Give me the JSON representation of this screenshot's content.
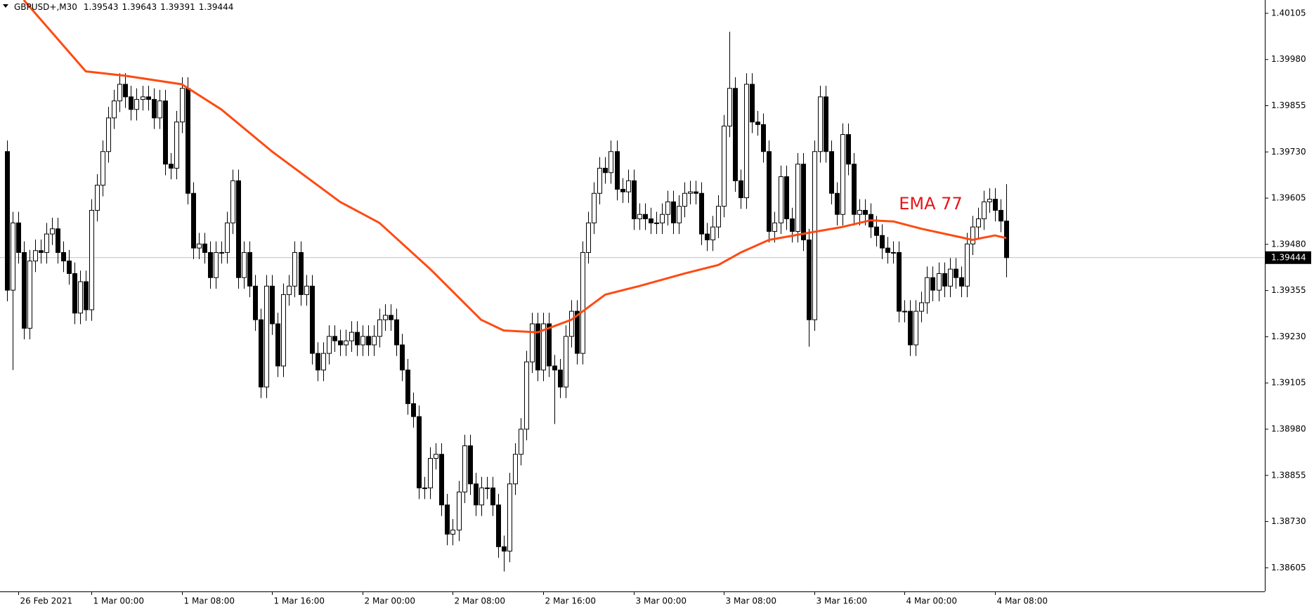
{
  "chart_data": {
    "type": "candlestick",
    "symbol": "GBPUSD+,M30",
    "open": [
      1.39731,
      1.39356,
      1.39538,
      1.39458,
      1.39253,
      1.39435,
      1.39463,
      1.39458,
      1.39508,
      1.39522,
      1.39458,
      1.39435,
      1.39401,
      1.39294,
      1.39379,
      1.39303,
      1.39572,
      1.3964,
      1.39731,
      1.39822,
      1.39868,
      1.39913,
      1.39879,
      1.39845,
      1.39872,
      1.39879,
      1.39872,
      1.39822,
      1.39868,
      1.39697,
      1.39686,
      1.39811,
      1.39902,
      1.39618,
      1.3947,
      1.39481,
      1.39458,
      1.3939,
      1.39458,
      1.39458,
      1.39538,
      1.39652,
      1.3939,
      1.39458,
      1.39367,
      1.39276,
      1.39094,
      1.39367,
      1.39265,
      1.39151,
      1.39344,
      1.39367,
      1.39458,
      1.39344,
      1.39367,
      1.39185,
      1.3914,
      1.39185,
      1.39231,
      1.39219,
      1.39208,
      1.39219,
      1.39242,
      1.39208,
      1.39231,
      1.39208,
      1.39231,
      1.39276,
      1.39288,
      1.39276,
      1.39208,
      1.3914,
      1.39049,
      1.39014,
      1.38821,
      1.38821,
      1.38901,
      1.38912,
      1.38775,
      1.38696,
      1.38707,
      1.3881,
      1.38935,
      1.38832,
      1.38775,
      1.38821,
      1.38821,
      1.38775,
      1.38662,
      1.3865,
      1.38832,
      1.38912,
      1.3898,
      1.39162,
      1.39265,
      1.3914,
      1.39265,
      1.39151,
      1.3914,
      1.39094,
      1.39231,
      1.39299,
      1.39185,
      1.39458,
      1.39538,
      1.39618,
      1.39686,
      1.39674,
      1.39731,
      1.39629,
      1.39622,
      1.39652,
      1.39549,
      1.39561,
      1.39549,
      1.39538,
      1.39538,
      1.39561,
      1.39595,
      1.39538,
      1.39583,
      1.39618,
      1.39622,
      1.39618,
      1.39508,
      1.39492,
      1.39527,
      1.39583,
      1.398,
      1.39902,
      1.39652,
      1.39606,
      1.39913,
      1.39811,
      1.39804,
      1.39731,
      1.39515,
      1.39538,
      1.39663,
      1.39549,
      1.39515,
      1.39697,
      1.39492,
      1.39276,
      1.39731,
      1.39879,
      1.39731,
      1.39618,
      1.39561,
      1.39777,
      1.39697,
      1.39561,
      1.39572,
      1.39561,
      1.39527,
      1.39504,
      1.3947,
      1.39458,
      1.39458,
      1.39299,
      1.39299,
      1.39208,
      1.39299,
      1.39322,
      1.3939,
      1.39356,
      1.39401,
      1.39367,
      1.39413,
      1.3939,
      1.39367,
      1.39481,
      1.39527,
      1.39549,
      1.39595,
      1.39602,
      1.39572,
      1.39543
    ],
    "high": [
      1.39761,
      1.39568,
      1.39568,
      1.39488,
      1.39465,
      1.39493,
      1.39493,
      1.39538,
      1.39552,
      1.39552,
      1.39488,
      1.39465,
      1.39431,
      1.39409,
      1.39409,
      1.39602,
      1.3967,
      1.39761,
      1.39852,
      1.39898,
      1.39943,
      1.39943,
      1.39909,
      1.39902,
      1.39909,
      1.39909,
      1.39902,
      1.39898,
      1.39898,
      1.39727,
      1.39841,
      1.39932,
      1.39932,
      1.39648,
      1.39511,
      1.39511,
      1.39488,
      1.39488,
      1.39488,
      1.39568,
      1.39682,
      1.39682,
      1.39488,
      1.39488,
      1.39397,
      1.39306,
      1.39397,
      1.39397,
      1.39295,
      1.39374,
      1.39397,
      1.39488,
      1.39488,
      1.39397,
      1.39397,
      1.39215,
      1.39215,
      1.39261,
      1.39261,
      1.39249,
      1.39249,
      1.39272,
      1.39272,
      1.39261,
      1.39261,
      1.39261,
      1.39306,
      1.39318,
      1.39318,
      1.39306,
      1.39238,
      1.3917,
      1.39079,
      1.39044,
      1.38851,
      1.38931,
      1.38942,
      1.38942,
      1.38805,
      1.38737,
      1.3884,
      1.38965,
      1.38965,
      1.38862,
      1.38851,
      1.38851,
      1.38851,
      1.38805,
      1.38692,
      1.38862,
      1.38942,
      1.3901,
      1.39192,
      1.39295,
      1.39295,
      1.39295,
      1.39295,
      1.39181,
      1.3917,
      1.39261,
      1.39329,
      1.39329,
      1.39488,
      1.39568,
      1.39648,
      1.39716,
      1.39716,
      1.39761,
      1.39761,
      1.39659,
      1.39682,
      1.39682,
      1.39591,
      1.39591,
      1.39579,
      1.39568,
      1.39591,
      1.39625,
      1.39625,
      1.39613,
      1.39648,
      1.39652,
      1.39652,
      1.39648,
      1.39538,
      1.39557,
      1.39613,
      1.3983,
      1.40055,
      1.39932,
      1.39682,
      1.39943,
      1.39943,
      1.39841,
      1.39834,
      1.39761,
      1.39568,
      1.39693,
      1.39693,
      1.39579,
      1.39727,
      1.39727,
      1.39522,
      1.39761,
      1.39909,
      1.39909,
      1.39761,
      1.39648,
      1.39807,
      1.39807,
      1.39727,
      1.39602,
      1.39602,
      1.39591,
      1.39557,
      1.39534,
      1.395,
      1.39488,
      1.39488,
      1.39329,
      1.39329,
      1.39329,
      1.39352,
      1.3942,
      1.3942,
      1.39431,
      1.39431,
      1.39443,
      1.39443,
      1.3942,
      1.39511,
      1.39557,
      1.39579,
      1.39625,
      1.39632,
      1.39632,
      1.39602,
      1.39643
    ],
    "low": [
      1.39326,
      1.3914,
      1.39428,
      1.39223,
      1.39223,
      1.39405,
      1.39428,
      1.39428,
      1.39478,
      1.39428,
      1.39405,
      1.39371,
      1.39264,
      1.39264,
      1.39273,
      1.39273,
      1.39542,
      1.3961,
      1.39701,
      1.39792,
      1.39838,
      1.39849,
      1.39815,
      1.39815,
      1.39842,
      1.39842,
      1.39792,
      1.39792,
      1.39667,
      1.39656,
      1.39656,
      1.39781,
      1.39588,
      1.3944,
      1.3944,
      1.39428,
      1.3936,
      1.3936,
      1.39428,
      1.39428,
      1.39508,
      1.3936,
      1.3936,
      1.39337,
      1.39246,
      1.39064,
      1.39064,
      1.39235,
      1.39121,
      1.39121,
      1.39314,
      1.39337,
      1.39314,
      1.39314,
      1.39155,
      1.3911,
      1.3911,
      1.39155,
      1.39189,
      1.39178,
      1.39178,
      1.39189,
      1.39178,
      1.39178,
      1.39178,
      1.39178,
      1.39201,
      1.39246,
      1.39246,
      1.39178,
      1.3911,
      1.39019,
      1.38984,
      1.38791,
      1.38791,
      1.38791,
      1.38871,
      1.38745,
      1.38666,
      1.38666,
      1.38677,
      1.3878,
      1.38802,
      1.38745,
      1.38745,
      1.38791,
      1.38745,
      1.38632,
      1.38595,
      1.3862,
      1.38802,
      1.38882,
      1.3895,
      1.39132,
      1.3911,
      1.3911,
      1.39121,
      1.38994,
      1.39064,
      1.39064,
      1.39201,
      1.39155,
      1.39155,
      1.39428,
      1.39508,
      1.39588,
      1.39644,
      1.39644,
      1.39599,
      1.39592,
      1.39592,
      1.39519,
      1.39519,
      1.39519,
      1.39508,
      1.39508,
      1.39508,
      1.39531,
      1.39508,
      1.39508,
      1.39553,
      1.39588,
      1.39588,
      1.39478,
      1.39462,
      1.39462,
      1.39497,
      1.39553,
      1.3977,
      1.39622,
      1.39576,
      1.39576,
      1.39781,
      1.39774,
      1.39701,
      1.39485,
      1.39485,
      1.39508,
      1.39519,
      1.39485,
      1.39485,
      1.39462,
      1.39203,
      1.39246,
      1.39701,
      1.39701,
      1.39588,
      1.39531,
      1.39531,
      1.39667,
      1.39531,
      1.39531,
      1.39531,
      1.39497,
      1.39474,
      1.3944,
      1.39428,
      1.39428,
      1.39269,
      1.39269,
      1.39178,
      1.39178,
      1.39269,
      1.39292,
      1.39326,
      1.39326,
      1.39337,
      1.39337,
      1.3936,
      1.39337,
      1.39337,
      1.39451,
      1.39497,
      1.39519,
      1.39565,
      1.39542,
      1.39513,
      1.39391
    ],
    "close": [
      1.39356,
      1.39538,
      1.39458,
      1.39253,
      1.39435,
      1.39463,
      1.39458,
      1.39508,
      1.39522,
      1.39458,
      1.39435,
      1.39401,
      1.39294,
      1.39379,
      1.39303,
      1.39572,
      1.3964,
      1.39731,
      1.39822,
      1.39868,
      1.39913,
      1.39879,
      1.39845,
      1.39872,
      1.39879,
      1.39872,
      1.39822,
      1.39868,
      1.39697,
      1.39686,
      1.39811,
      1.39902,
      1.39618,
      1.3947,
      1.39481,
      1.39458,
      1.3939,
      1.39458,
      1.39458,
      1.39538,
      1.39652,
      1.3939,
      1.39458,
      1.39367,
      1.39276,
      1.39094,
      1.39367,
      1.39265,
      1.39151,
      1.39344,
      1.39367,
      1.39458,
      1.39344,
      1.39367,
      1.39185,
      1.3914,
      1.39185,
      1.39231,
      1.39219,
      1.39208,
      1.39219,
      1.39242,
      1.39208,
      1.39231,
      1.39208,
      1.39231,
      1.39276,
      1.39288,
      1.39276,
      1.39208,
      1.3914,
      1.39049,
      1.39014,
      1.38821,
      1.38821,
      1.38901,
      1.38912,
      1.38775,
      1.38696,
      1.38707,
      1.3881,
      1.38935,
      1.38832,
      1.38775,
      1.38821,
      1.38821,
      1.38775,
      1.38662,
      1.3865,
      1.38832,
      1.38912,
      1.3898,
      1.39162,
      1.39265,
      1.3914,
      1.39265,
      1.39151,
      1.3914,
      1.39094,
      1.39231,
      1.39299,
      1.39185,
      1.39458,
      1.39538,
      1.39618,
      1.39686,
      1.39674,
      1.39731,
      1.39629,
      1.39622,
      1.39652,
      1.39549,
      1.39561,
      1.39549,
      1.39538,
      1.39538,
      1.39561,
      1.39595,
      1.39538,
      1.39583,
      1.39618,
      1.39622,
      1.39618,
      1.39508,
      1.39492,
      1.39527,
      1.39583,
      1.398,
      1.39902,
      1.39652,
      1.39606,
      1.39913,
      1.39811,
      1.39804,
      1.39731,
      1.39515,
      1.39538,
      1.39663,
      1.39549,
      1.39515,
      1.39697,
      1.39492,
      1.39276,
      1.39731,
      1.39879,
      1.39731,
      1.39618,
      1.39561,
      1.39777,
      1.39697,
      1.39561,
      1.39572,
      1.39561,
      1.39527,
      1.39504,
      1.3947,
      1.39458,
      1.39458,
      1.39299,
      1.39299,
      1.39208,
      1.39299,
      1.39322,
      1.3939,
      1.39356,
      1.39401,
      1.39367,
      1.39413,
      1.3939,
      1.39367,
      1.39481,
      1.39527,
      1.39549,
      1.39595,
      1.39602,
      1.39572,
      1.39543,
      1.39444
    ],
    "up_color": "#ffffff",
    "down_color": "#000000",
    "series": [
      {
        "name": "EMA 77",
        "color": "#ff4a12",
        "label_color": "#e8141a",
        "x": [
          3,
          14,
          21,
          31,
          38,
          47,
          59,
          66,
          75,
          84,
          88,
          94,
          100,
          106,
          112,
          120,
          126,
          130,
          135,
          142,
          148,
          153,
          157,
          162,
          169,
          171,
          175,
          177
        ],
        "values": [
          1.40141,
          1.39948,
          1.39936,
          1.39913,
          1.39845,
          1.39731,
          1.39595,
          1.39538,
          1.39413,
          1.39276,
          1.39247,
          1.39242,
          1.39276,
          1.39344,
          1.39367,
          1.39401,
          1.39424,
          1.39458,
          1.39492,
          1.39511,
          1.39527,
          1.39545,
          1.39542,
          1.39522,
          1.39499,
          1.39492,
          1.39504,
          1.39497
        ]
      }
    ],
    "xlim": [
      -1.2,
      222.8
    ],
    "xticks": [
      {
        "value": 2,
        "label": "26 Feb 2021"
      },
      {
        "value": 15,
        "label": "1 Mar 00:00"
      },
      {
        "value": 31,
        "label": "1 Mar 08:00"
      },
      {
        "value": 47,
        "label": "1 Mar 16:00"
      },
      {
        "value": 63,
        "label": "2 Mar 00:00"
      },
      {
        "value": 79,
        "label": "2 Mar 08:00"
      },
      {
        "value": 95,
        "label": "2 Mar 16:00"
      },
      {
        "value": 111,
        "label": "3 Mar 00:00"
      },
      {
        "value": 127,
        "label": "3 Mar 08:00"
      },
      {
        "value": 143,
        "label": "3 Mar 16:00"
      },
      {
        "value": 159,
        "label": "4 Mar 00:00"
      },
      {
        "value": 175,
        "label": "4 Mar 08:00"
      }
    ],
    "ylim": [
      1.38541,
      1.40141
    ],
    "yticks": [
      1.40105,
      {
        "value": 1.3998,
        "label": "1.39980"
      },
      1.39855,
      {
        "value": 1.3973,
        "label": "1.39730"
      },
      1.39605,
      {
        "value": 1.3948,
        "label": "1.39480"
      },
      1.39355,
      {
        "value": 1.3923,
        "label": "1.39230"
      },
      1.39105,
      {
        "value": 1.3898,
        "label": "1.38980"
      },
      1.38855,
      {
        "value": 1.3873,
        "label": "1.38730"
      },
      1.38605
    ],
    "grid": false
  }
}
